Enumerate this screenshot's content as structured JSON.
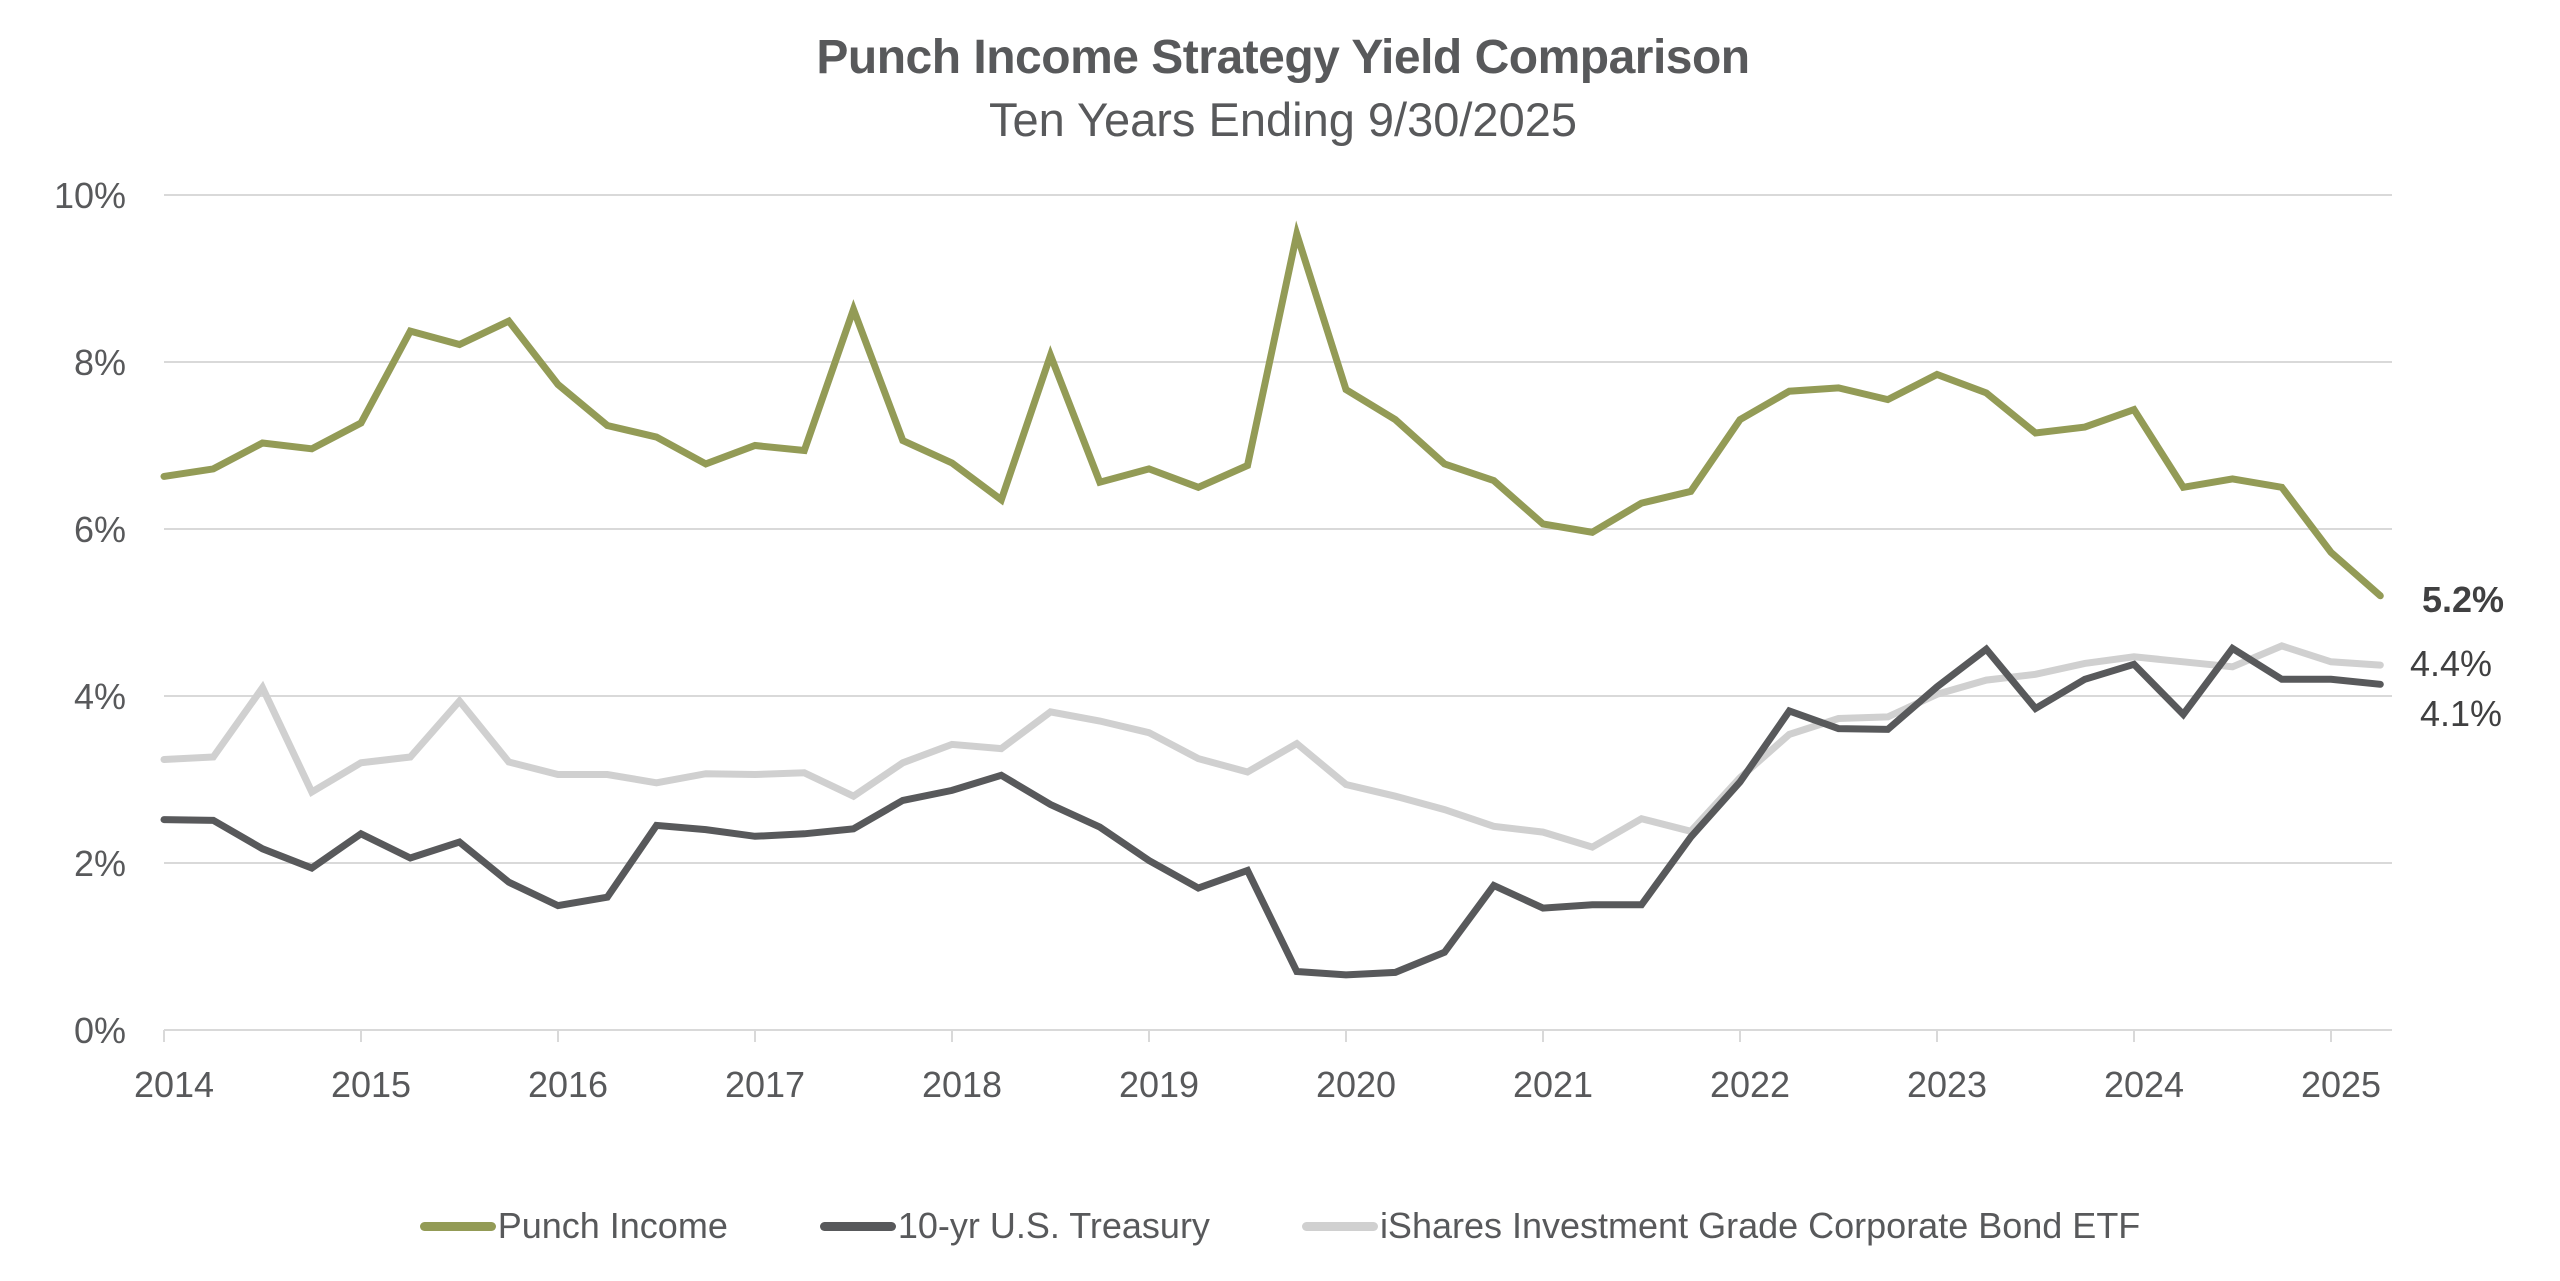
{
  "header": {
    "title": "Punch Income Strategy Yield Comparison",
    "subtitle": "Ten Years Ending 9/30/2025"
  },
  "legend": [
    {
      "label": "Punch Income",
      "color": "#939b56"
    },
    {
      "label": "10-yr U.S. Treasury",
      "color": "#58595b"
    },
    {
      "label": "iShares Investment Grade Corporate Bond ETF",
      "color": "#d0d0d0"
    }
  ],
  "end_labels": {
    "punch": "5.2%",
    "ig_etf": "4.4%",
    "treasury": "4.1%"
  },
  "chart_data": {
    "type": "line",
    "title": "Punch Income Strategy Yield Comparison",
    "subtitle": "Ten Years Ending 9/30/2025",
    "xlabel": "",
    "ylabel": "",
    "ylim": [
      0,
      10
    ],
    "yticks": [
      "0%",
      "2%",
      "4%",
      "6%",
      "8%",
      "10%"
    ],
    "xticks": [
      "2014",
      "2015",
      "2016",
      "2017",
      "2018",
      "2019",
      "2020",
      "2021",
      "2022",
      "2023",
      "2024",
      "2025"
    ],
    "grid": true,
    "legend_position": "bottom",
    "x_note": "quarterly points from 2014 Q1 to 2025 Q2 (46 points)",
    "x": [
      2014.0,
      2014.25,
      2014.5,
      2014.75,
      2015.0,
      2015.25,
      2015.5,
      2015.75,
      2016.0,
      2016.25,
      2016.5,
      2016.75,
      2017.0,
      2017.25,
      2017.5,
      2017.75,
      2018.0,
      2018.25,
      2018.5,
      2018.75,
      2019.0,
      2019.25,
      2019.5,
      2019.75,
      2020.0,
      2020.25,
      2020.5,
      2020.75,
      2021.0,
      2021.25,
      2021.5,
      2021.75,
      2022.0,
      2022.25,
      2022.5,
      2022.75,
      2023.0,
      2023.25,
      2023.5,
      2023.75,
      2024.0,
      2024.25,
      2024.5,
      2024.75,
      2025.0,
      2025.25
    ],
    "series": [
      {
        "name": "Punch Income",
        "color": "#939b56",
        "values": [
          6.63,
          6.72,
          7.03,
          6.96,
          7.27,
          8.37,
          8.21,
          8.49,
          7.73,
          7.24,
          7.1,
          6.78,
          7.0,
          6.94,
          8.63,
          7.06,
          6.79,
          6.35,
          8.08,
          6.56,
          6.72,
          6.5,
          6.76,
          9.53,
          7.67,
          7.31,
          6.78,
          6.58,
          6.06,
          5.96,
          6.31,
          6.45,
          7.31,
          7.65,
          7.69,
          7.55,
          7.85,
          7.63,
          7.15,
          7.22,
          7.43,
          6.5,
          6.6,
          6.5,
          5.72,
          5.2
        ]
      },
      {
        "name": "10-yr U.S. Treasury",
        "color": "#58595b",
        "values": [
          2.52,
          2.51,
          2.17,
          1.94,
          2.35,
          2.06,
          2.25,
          1.77,
          1.49,
          1.59,
          2.45,
          2.4,
          2.32,
          2.35,
          2.41,
          2.75,
          2.87,
          3.05,
          2.7,
          2.43,
          2.03,
          1.7,
          1.91,
          0.7,
          0.66,
          0.69,
          0.93,
          1.73,
          1.46,
          1.5,
          1.5,
          2.31,
          2.97,
          3.82,
          3.61,
          3.6,
          4.11,
          4.56,
          3.85,
          4.2,
          4.38,
          3.78,
          4.57,
          4.2,
          4.2,
          4.14
        ]
      },
      {
        "name": "iShares Investment Grade Corporate Bond ETF",
        "color": "#d0d0d0",
        "values": [
          3.24,
          3.27,
          4.1,
          2.85,
          3.2,
          3.27,
          3.94,
          3.21,
          3.06,
          3.06,
          2.96,
          3.07,
          3.06,
          3.08,
          2.8,
          3.2,
          3.42,
          3.37,
          3.81,
          3.7,
          3.56,
          3.25,
          3.09,
          3.43,
          2.94,
          2.8,
          2.64,
          2.44,
          2.37,
          2.19,
          2.53,
          2.38,
          3.02,
          3.54,
          3.73,
          3.75,
          4.02,
          4.19,
          4.26,
          4.39,
          4.47,
          4.41,
          4.35,
          4.6,
          4.41,
          4.37
        ]
      }
    ],
    "annotations": [
      {
        "series": "Punch Income",
        "text": "5.2%"
      },
      {
        "series": "iShares Investment Grade Corporate Bond ETF",
        "text": "4.4%"
      },
      {
        "series": "10-yr U.S. Treasury",
        "text": "4.1%"
      }
    ]
  }
}
